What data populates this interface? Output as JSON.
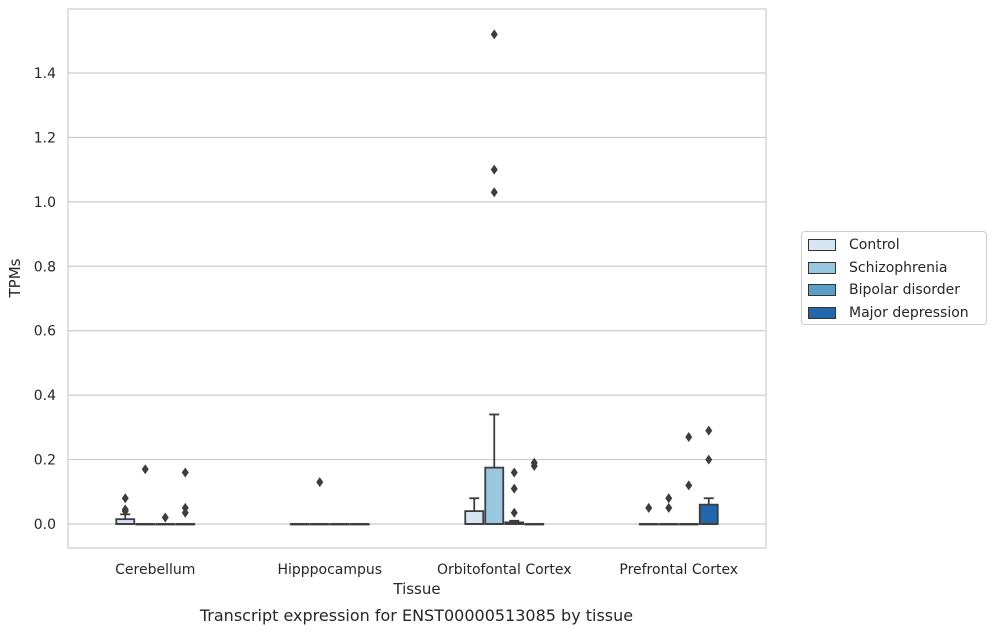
{
  "caption": "Transcript expression for ENST00000513085 by tissue",
  "chart_data": {
    "type": "box",
    "title": "",
    "xlabel": "Tissue",
    "ylabel": "TPMs",
    "ylim": [
      -0.075,
      1.59
    ],
    "yticks": [
      "0.0",
      "0.2",
      "0.4",
      "0.6",
      "0.8",
      "1.0",
      "1.2",
      "1.4"
    ],
    "ytick_values": [
      0.0,
      0.2,
      0.4,
      0.6,
      0.8,
      1.0,
      1.2,
      1.4
    ],
    "grid": "horizontal",
    "legend_position": "right",
    "categories": [
      "Cerebellum",
      "Hipppocampus",
      "Orbitofontal Cortex",
      "Prefrontal Cortex"
    ],
    "series": [
      {
        "name": "Control",
        "color": "#d6e5f4",
        "boxes": [
          {
            "q1": 0.0,
            "median": 0.0,
            "q3": 0.015,
            "whislo": 0.0,
            "whishi": 0.03,
            "fliers": [
              0.04,
              0.08,
              0.045
            ]
          },
          {
            "q1": 0.0,
            "median": 0.0,
            "q3": 0.0,
            "whislo": 0.0,
            "whishi": 0.0,
            "fliers": []
          },
          {
            "q1": 0.0,
            "median": 0.0,
            "q3": 0.04,
            "whislo": 0.0,
            "whishi": 0.08,
            "fliers": []
          },
          {
            "q1": 0.0,
            "median": 0.0,
            "q3": 0.0,
            "whislo": 0.0,
            "whishi": 0.0,
            "fliers": [
              0.05
            ]
          }
        ]
      },
      {
        "name": "Schizophrenia",
        "color": "#9ac7e0",
        "boxes": [
          {
            "q1": 0.0,
            "median": 0.0,
            "q3": 0.0,
            "whislo": 0.0,
            "whishi": 0.0,
            "fliers": [
              0.17
            ]
          },
          {
            "q1": 0.0,
            "median": 0.0,
            "q3": 0.0,
            "whislo": 0.0,
            "whishi": 0.0,
            "fliers": [
              0.13
            ]
          },
          {
            "q1": 0.0,
            "median": 0.0,
            "q3": 0.175,
            "whislo": 0.0,
            "whishi": 0.34,
            "fliers": [
              1.52,
              1.1,
              1.03
            ]
          },
          {
            "q1": 0.0,
            "median": 0.0,
            "q3": 0.0,
            "whislo": 0.0,
            "whishi": 0.0,
            "fliers": [
              0.08,
              0.05
            ]
          }
        ]
      },
      {
        "name": "Bipolar disorder",
        "color": "#5a9ec9",
        "boxes": [
          {
            "q1": 0.0,
            "median": 0.0,
            "q3": 0.0,
            "whislo": 0.0,
            "whishi": 0.0,
            "fliers": [
              0.02
            ]
          },
          {
            "q1": 0.0,
            "median": 0.0,
            "q3": 0.0,
            "whislo": 0.0,
            "whishi": 0.0,
            "fliers": []
          },
          {
            "q1": 0.0,
            "median": 0.0,
            "q3": 0.005,
            "whislo": 0.0,
            "whishi": 0.01,
            "fliers": [
              0.16,
              0.11,
              0.035
            ]
          },
          {
            "q1": 0.0,
            "median": 0.0,
            "q3": 0.0,
            "whislo": 0.0,
            "whishi": 0.0,
            "fliers": [
              0.27,
              0.12
            ]
          }
        ]
      },
      {
        "name": "Major depression",
        "color": "#2266ac",
        "boxes": [
          {
            "q1": 0.0,
            "median": 0.0,
            "q3": 0.0,
            "whislo": 0.0,
            "whishi": 0.0,
            "fliers": [
              0.16,
              0.05,
              0.035
            ]
          },
          {
            "q1": 0.0,
            "median": 0.0,
            "q3": 0.0,
            "whislo": 0.0,
            "whishi": 0.0,
            "fliers": []
          },
          {
            "q1": 0.0,
            "median": 0.0,
            "q3": 0.0,
            "whislo": 0.0,
            "whishi": 0.0,
            "fliers": [
              0.19,
              0.18
            ]
          },
          {
            "q1": 0.0,
            "median": 0.0,
            "q3": 0.06,
            "whislo": 0.0,
            "whishi": 0.08,
            "fliers": [
              0.29,
              0.2
            ]
          }
        ]
      }
    ]
  }
}
